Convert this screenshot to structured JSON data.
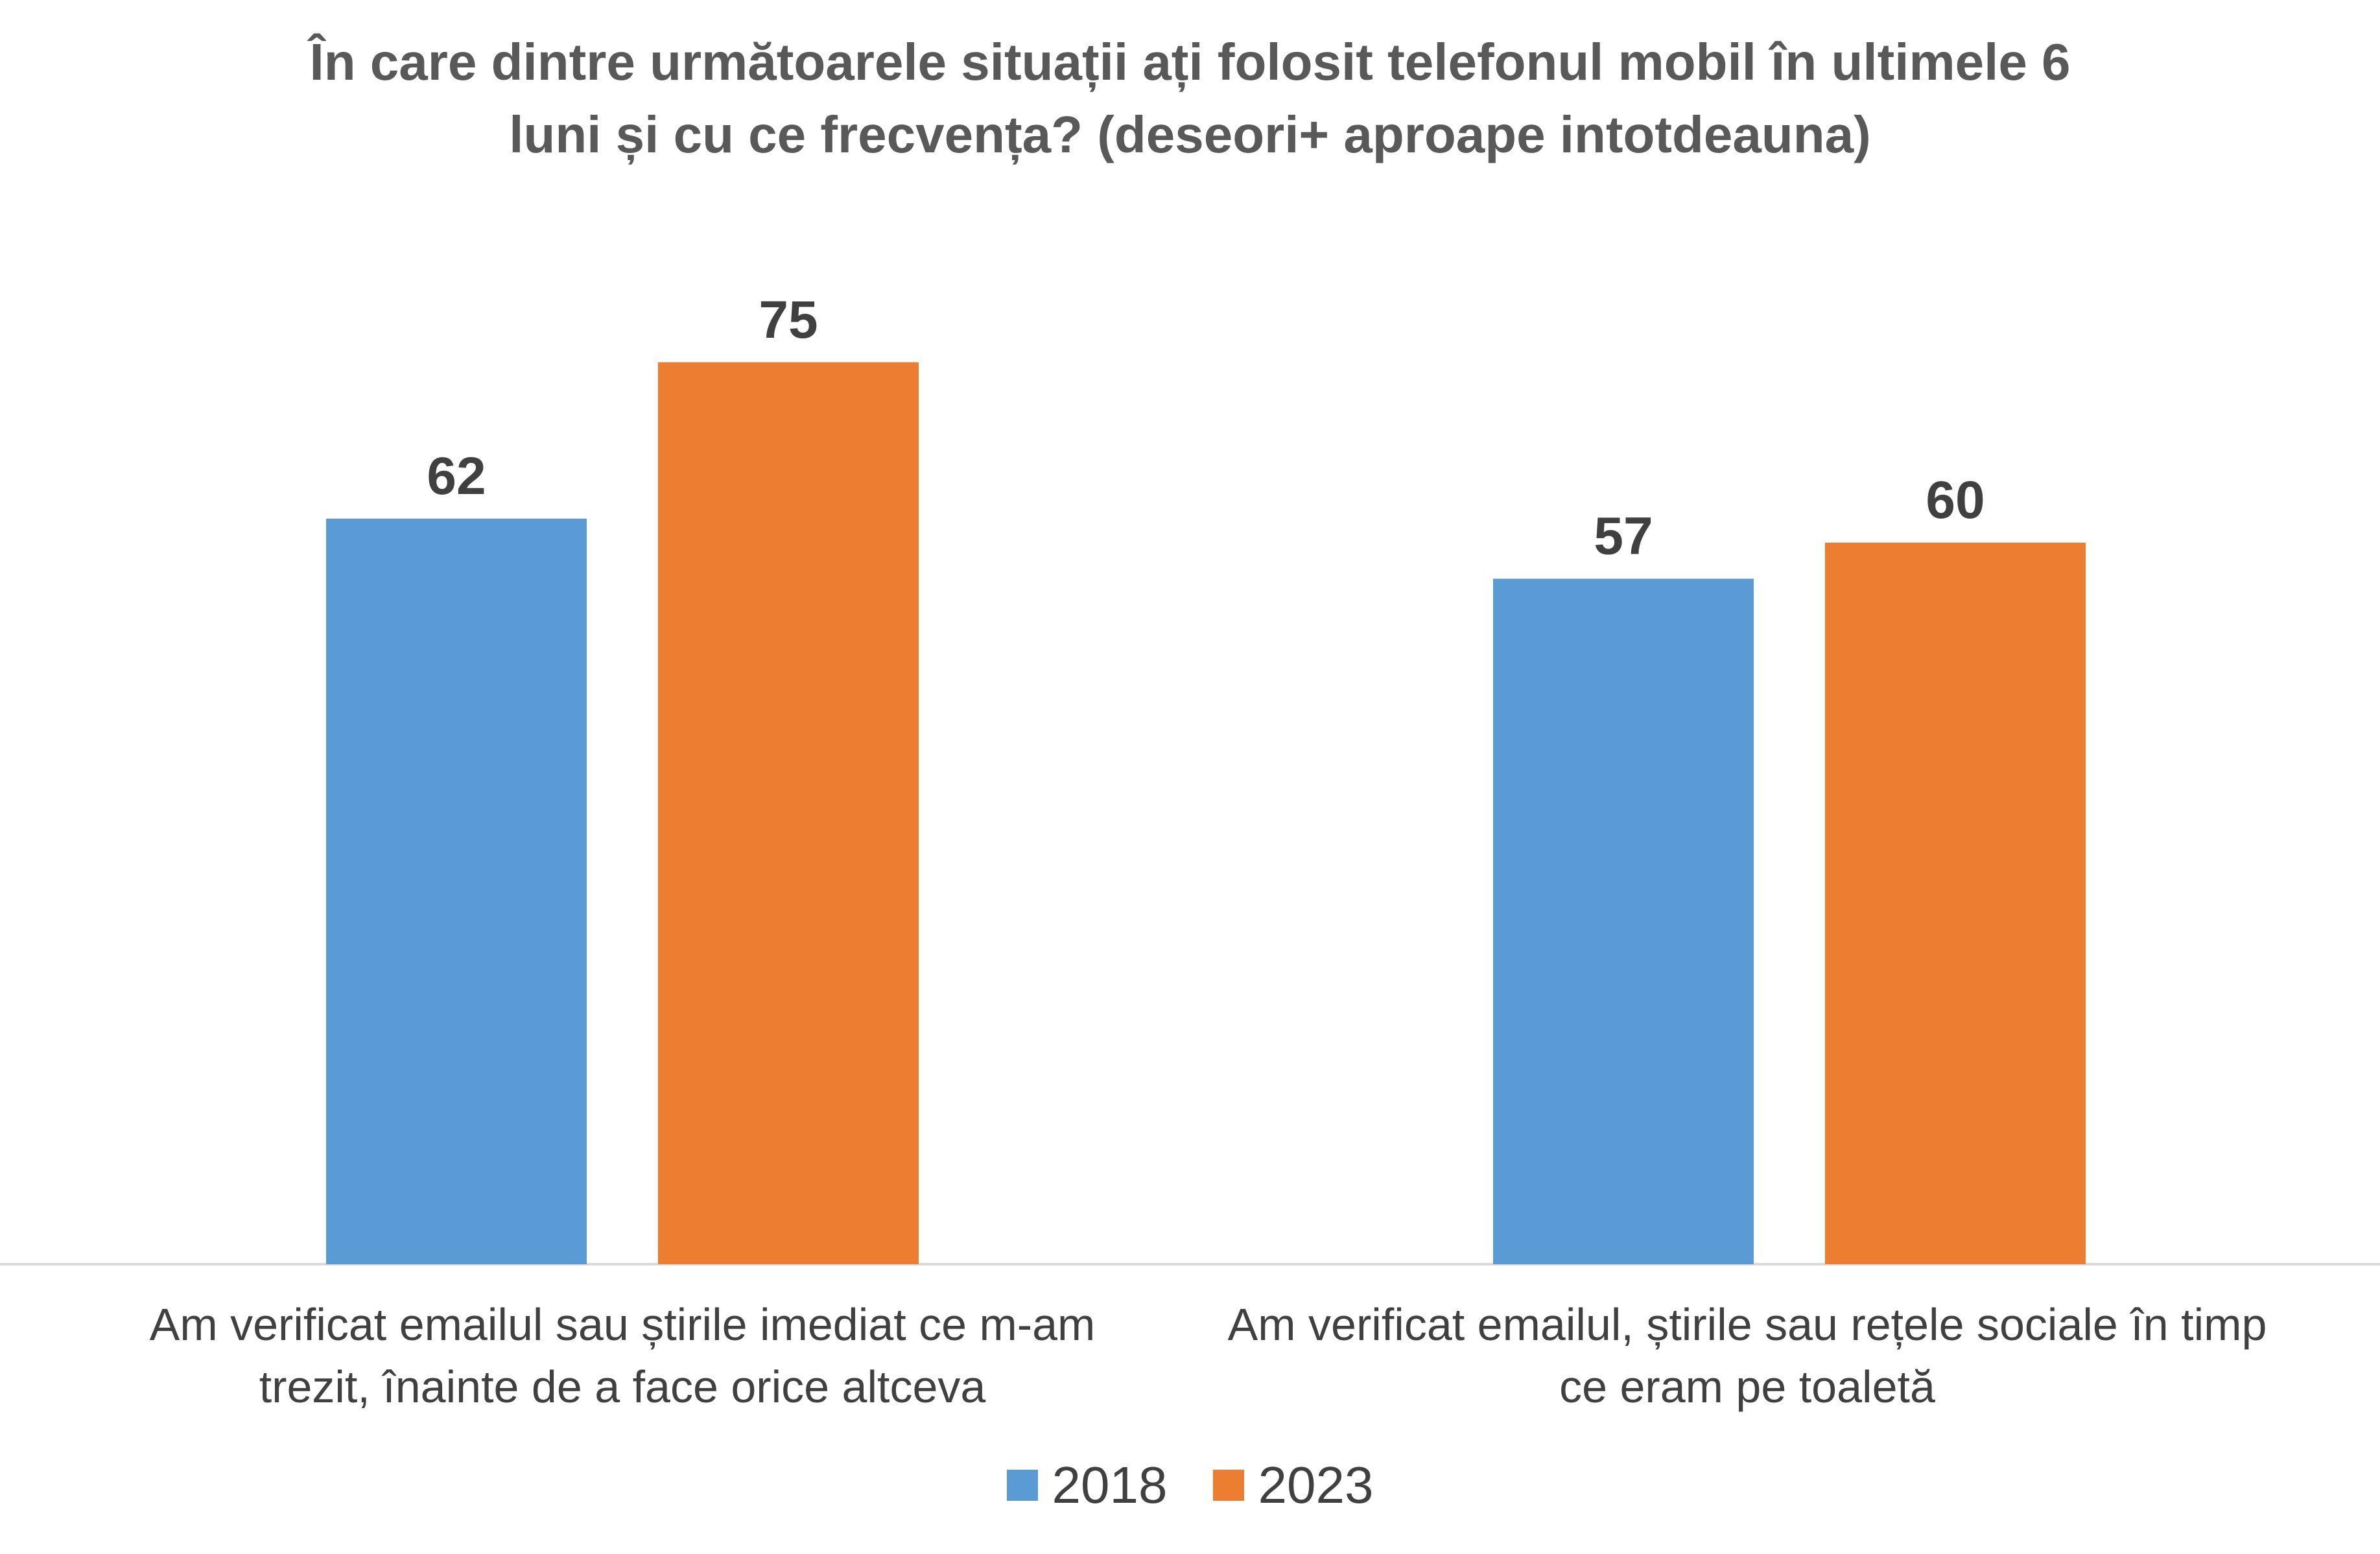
{
  "chart_data": {
    "type": "bar",
    "title_lines": [
      "În care dintre următoarele situații ați folosit telefonul mobil în ultimele 6",
      "luni și cu ce frecvența? (deseori+ aproape intotdeauna)"
    ],
    "categories": [
      [
        "Am verificat emailul sau știrile imediat ce m-am",
        "trezit, înainte de a face orice altceva"
      ],
      [
        "Am verificat emailul, știrile sau rețele sociale în timp",
        "ce eram pe toaletă"
      ]
    ],
    "series": [
      {
        "name": "2018",
        "color": "#5B9BD5",
        "values": [
          62,
          57
        ]
      },
      {
        "name": "2023",
        "color": "#ED7D31",
        "values": [
          75,
          60
        ]
      }
    ],
    "ylim": [
      0,
      100
    ],
    "grid": false,
    "data_labels": true,
    "legend_position": "bottom"
  }
}
